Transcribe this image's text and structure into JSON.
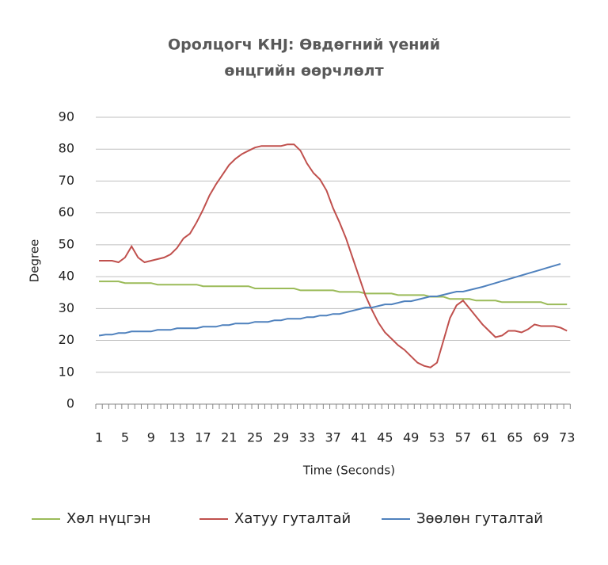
{
  "chart_data": {
    "type": "line",
    "title": [
      "Оролцогч КНJ: Өвдөгний үений",
      "өнцгийн өөрчлөлт"
    ],
    "x_label": "Time (Seconds)",
    "y_label": "Degree",
    "categories": [
      1,
      null,
      null,
      null,
      5,
      null,
      null,
      null,
      9,
      null,
      null,
      null,
      13,
      null,
      null,
      null,
      17,
      null,
      null,
      null,
      21,
      null,
      null,
      null,
      25,
      null,
      null,
      null,
      29,
      null,
      null,
      null,
      33,
      null,
      null,
      null,
      37,
      null,
      null,
      null,
      41,
      null,
      null,
      null,
      45,
      null,
      null,
      null,
      49,
      null,
      null,
      null,
      53,
      null,
      null,
      null,
      57,
      null,
      null,
      null,
      61,
      null,
      null,
      null,
      65,
      null,
      null,
      null,
      69,
      null,
      null,
      null,
      73
    ],
    "ylim": [
      0,
      90
    ],
    "yticks": [
      0,
      10,
      20,
      30,
      40,
      50,
      60,
      70,
      80,
      90
    ],
    "grid": true,
    "series": [
      {
        "name": "Хөл нүцгэн",
        "color": "#9bbb59",
        "values": [
          38.5,
          38.5,
          38.5,
          38.5,
          38,
          38,
          38,
          38,
          38,
          37.5,
          37.5,
          37.5,
          37.5,
          37.5,
          37.5,
          37.5,
          37,
          37,
          37,
          37,
          37,
          37,
          37,
          37,
          36.3,
          36.3,
          36.3,
          36.3,
          36.3,
          36.3,
          36.3,
          35.7,
          35.7,
          35.7,
          35.7,
          35.7,
          35.7,
          35.2,
          35.2,
          35.2,
          35.2,
          34.7,
          34.7,
          34.7,
          34.7,
          34.7,
          34.2,
          34.2,
          34.2,
          34.2,
          34.2,
          33.7,
          33.7,
          33.7,
          33,
          33,
          33,
          33,
          32.5,
          32.5,
          32.5,
          32.5,
          32,
          32,
          32,
          32,
          32,
          32,
          32,
          31.3,
          31.3,
          31.3,
          31.3
        ]
      },
      {
        "name": "Хатуу гуталтай",
        "color": "#c0504d",
        "values": [
          45,
          45,
          45,
          44.5,
          46,
          49.5,
          46,
          44.5,
          45,
          45.5,
          46,
          47,
          49,
          52,
          53.5,
          57,
          61,
          65.5,
          69,
          72,
          75,
          77,
          78.5,
          79.5,
          80.5,
          81,
          81,
          81,
          81,
          81.5,
          81.5,
          79.5,
          75.5,
          72.5,
          70.5,
          67,
          61.5,
          57,
          52,
          46,
          40,
          34,
          29.5,
          25.5,
          22.5,
          20.5,
          18.5,
          17,
          15,
          13,
          12,
          11.5,
          13,
          20,
          27,
          31,
          32.5,
          30,
          27.5,
          25,
          23,
          21,
          21.5,
          23,
          23,
          22.5,
          23.5,
          25,
          24.5,
          24.5,
          24.5,
          24,
          23
        ]
      },
      {
        "name": "Зөөлөн гуталтай",
        "color": "#4f81bd",
        "values": [
          21.5,
          21.8,
          21.8,
          22.3,
          22.3,
          22.8,
          22.8,
          22.8,
          22.8,
          23.3,
          23.3,
          23.3,
          23.8,
          23.8,
          23.8,
          23.8,
          24.3,
          24.3,
          24.3,
          24.8,
          24.8,
          25.3,
          25.3,
          25.3,
          25.8,
          25.8,
          25.8,
          26.3,
          26.3,
          26.8,
          26.8,
          26.8,
          27.3,
          27.3,
          27.8,
          27.8,
          28.3,
          28.3,
          28.8,
          29.3,
          29.8,
          30.3,
          30.3,
          30.8,
          31.3,
          31.3,
          31.8,
          32.3,
          32.3,
          32.8,
          33.3,
          33.8,
          33.8,
          34.3,
          34.8,
          35.3,
          35.3,
          35.8,
          36.3,
          36.8,
          37.4,
          38,
          38.6,
          39.2,
          39.8,
          40.4,
          41,
          41.6,
          42.2,
          42.8,
          43.4,
          44,
          null
        ]
      }
    ]
  }
}
